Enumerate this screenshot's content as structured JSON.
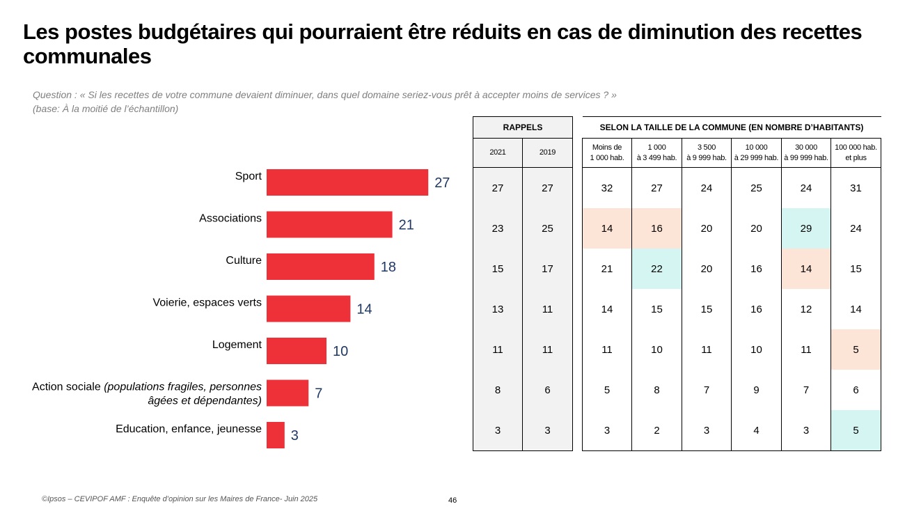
{
  "title": "Les postes budgétaires qui pourraient être réduits en cas de diminution des recettes communales",
  "question_label": "Question :",
  "question_text": " « Si les recettes de votre commune devaient diminuer, dans quel domaine seriez-vous prêt à accepter moins de services ? »",
  "base": "(base: À la moitié de l’échantillon)",
  "footer": "©Ipsos – CEVIPOF AMF : Enquête d’opinion sur les Maires de France- Juin 2025",
  "page_number": "46",
  "colors": {
    "bar": "#ee3139",
    "value_label": "#1f3864",
    "highlight_peach": "#fce4d6",
    "highlight_cyan": "#d5f5f3"
  },
  "chart_data": {
    "type": "bar",
    "orientation": "horizontal",
    "title": "",
    "xlabel": "",
    "ylabel": "",
    "categories": [
      {
        "main": "Sport",
        "detail": ""
      },
      {
        "main": "Associations",
        "detail": ""
      },
      {
        "main": "Culture",
        "detail": ""
      },
      {
        "main": "Voierie, espaces verts",
        "detail": ""
      },
      {
        "main": "Logement",
        "detail": ""
      },
      {
        "main": "Action sociale ",
        "detail": "(populations fragiles, personnes âgées et dépendantes)"
      },
      {
        "main": "Education, enfance, jeunesse",
        "detail": ""
      }
    ],
    "values": [
      27,
      21,
      18,
      14,
      10,
      7,
      3
    ],
    "xlim": [
      0,
      30
    ],
    "grid": false,
    "legend": "none"
  },
  "rappels": {
    "header": "RAPPELS",
    "columns": [
      "2021",
      "2019"
    ],
    "rows": [
      [
        27,
        27
      ],
      [
        23,
        25
      ],
      [
        15,
        17
      ],
      [
        13,
        11
      ],
      [
        11,
        11
      ],
      [
        8,
        6
      ],
      [
        3,
        3
      ]
    ]
  },
  "commune_size": {
    "header": "SELON LA TAILLE DE LA COMMUNE (EN NOMBRE D’HABITANTS)",
    "columns": [
      [
        "Moins de",
        "1 000 hab."
      ],
      [
        "1 000",
        "à 3 499 hab."
      ],
      [
        "3 500",
        "à 9 999 hab."
      ],
      [
        "10 000",
        "à 29 999 hab."
      ],
      [
        "30 000",
        "à 99 999 hab."
      ],
      [
        "100 000 hab.",
        "et plus"
      ]
    ],
    "rows": [
      [
        32,
        27,
        24,
        25,
        24,
        31
      ],
      [
        14,
        16,
        20,
        20,
        29,
        24
      ],
      [
        21,
        22,
        20,
        16,
        14,
        15
      ],
      [
        14,
        15,
        15,
        16,
        12,
        14
      ],
      [
        11,
        10,
        11,
        10,
        11,
        5
      ],
      [
        5,
        8,
        7,
        9,
        7,
        6
      ],
      [
        3,
        2,
        3,
        4,
        3,
        5
      ]
    ],
    "highlights": [
      {
        "row": 1,
        "col": 0,
        "type": "lower"
      },
      {
        "row": 1,
        "col": 1,
        "type": "lower"
      },
      {
        "row": 1,
        "col": 4,
        "type": "higher"
      },
      {
        "row": 2,
        "col": 1,
        "type": "higher"
      },
      {
        "row": 2,
        "col": 4,
        "type": "lower"
      },
      {
        "row": 4,
        "col": 5,
        "type": "lower"
      },
      {
        "row": 6,
        "col": 5,
        "type": "higher"
      }
    ]
  }
}
